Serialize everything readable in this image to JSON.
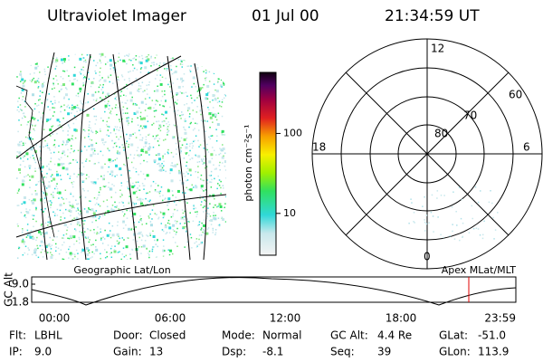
{
  "header": {
    "instrument": "Ultraviolet Imager",
    "date": "01 Jul 00",
    "time": "21:34:59 UT"
  },
  "colorbar": {
    "label": "photon cm⁻²s⁻¹",
    "scale": "log",
    "lim": [
      3,
      580
    ],
    "ticks": [
      10,
      100
    ]
  },
  "left_panel": {
    "caption": "Geographic Lat/Lon"
  },
  "right_panel": {
    "caption": "Apex MLat/MLT",
    "mlt_labels": [
      "12",
      "18",
      "6",
      "0"
    ],
    "lat_labels": [
      "60",
      "70",
      "80"
    ]
  },
  "timeline": {
    "ylabel": "GC Alt",
    "yticks": [
      {
        "value": 9,
        "label": "9.0"
      },
      {
        "value": 1.8,
        "label": "1.8"
      }
    ],
    "xticks": [
      "00:00",
      "06:00",
      "12:00",
      "18:00",
      "23:59"
    ]
  },
  "status": {
    "rows": [
      [
        [
          "Flt:",
          "LBHL"
        ],
        [
          "Door:",
          "Closed"
        ],
        [
          "Mode:",
          "Normal"
        ],
        [
          "GC Alt:",
          "4.4 Re"
        ],
        [
          "GLat:",
          "-51.0"
        ]
      ],
      [
        [
          "IP:",
          "9.0"
        ],
        [
          "Gain:",
          "13"
        ],
        [
          "Dsp:",
          "-8.1"
        ],
        [
          "Seq:",
          "39"
        ],
        [
          "GLon:",
          "113.9"
        ]
      ]
    ]
  }
}
